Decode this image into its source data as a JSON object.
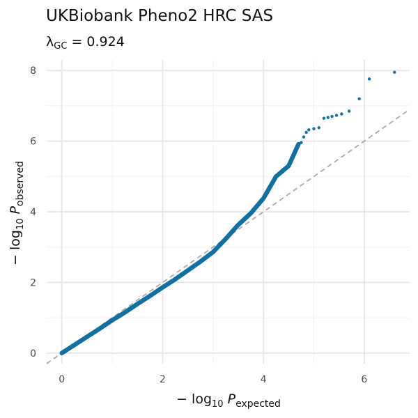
{
  "chart_data": {
    "type": "scatter",
    "title": "UKBiobank Pheno2 HRC SAS",
    "lambda": {
      "symbol": "λ",
      "subscript": "GC",
      "value": "0.924"
    },
    "xlabel": {
      "prefix": "− log",
      "sub": "10",
      "var": "P",
      "var_sub": "expected"
    },
    "ylabel": {
      "prefix": "− log",
      "sub": "10",
      "var": "P",
      "var_sub": "observed"
    },
    "xlim": [
      -0.3,
      6.9
    ],
    "ylim": [
      -0.3,
      8.3
    ],
    "x_ticks": [
      0,
      2,
      4,
      6
    ],
    "y_ticks": [
      0,
      2,
      4,
      6,
      8
    ],
    "grid": true,
    "reference_line": {
      "slope": 1,
      "intercept": 0,
      "style": "dashed",
      "color": "#aaaaaa"
    },
    "point_color": "#1170a0",
    "series": [
      {
        "values": [
          [
            0.0,
            0.0
          ],
          [
            0.25,
            0.23
          ],
          [
            0.5,
            0.46
          ],
          [
            0.75,
            0.69
          ],
          [
            1.0,
            0.93
          ],
          [
            1.25,
            1.15
          ],
          [
            1.5,
            1.39
          ],
          [
            1.75,
            1.62
          ],
          [
            2.0,
            1.86
          ],
          [
            2.25,
            2.09
          ],
          [
            2.5,
            2.34
          ],
          [
            2.75,
            2.59
          ],
          [
            3.0,
            2.86
          ],
          [
            3.25,
            3.23
          ],
          [
            3.5,
            3.63
          ],
          [
            3.75,
            3.96
          ],
          [
            4.0,
            4.38
          ],
          [
            4.25,
            5.0
          ],
          [
            4.5,
            5.3
          ],
          [
            4.7,
            5.93
          ],
          [
            4.75,
            5.96
          ],
          [
            4.8,
            6.12
          ],
          [
            4.85,
            6.25
          ],
          [
            4.9,
            6.32
          ],
          [
            5.0,
            6.35
          ],
          [
            5.1,
            6.38
          ],
          [
            5.2,
            6.65
          ],
          [
            5.28,
            6.67
          ],
          [
            5.36,
            6.7
          ],
          [
            5.45,
            6.73
          ],
          [
            5.55,
            6.77
          ],
          [
            5.7,
            6.85
          ],
          [
            5.9,
            7.2
          ],
          [
            6.1,
            7.76
          ],
          [
            6.6,
            7.95
          ]
        ]
      }
    ]
  }
}
